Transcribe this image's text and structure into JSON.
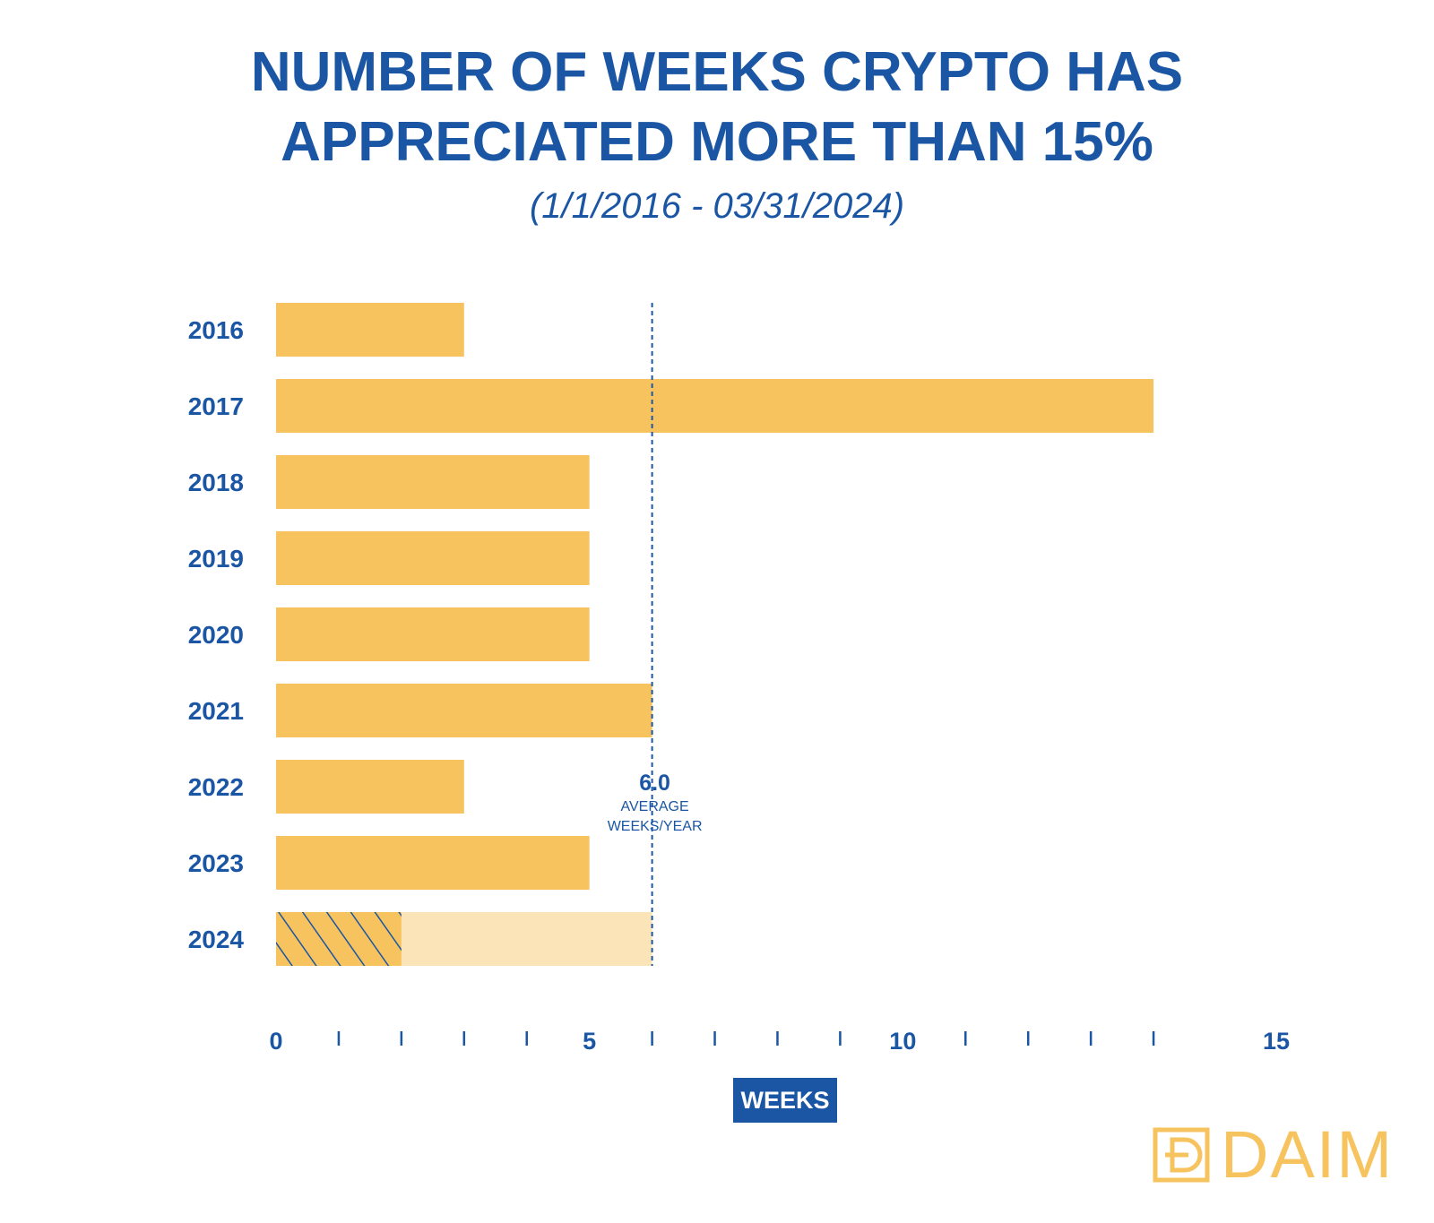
{
  "chart_data": {
    "type": "bar",
    "orientation": "horizontal",
    "title_lines": [
      "NUMBER OF WEEKS CRYPTO HAS",
      "APPRECIATED MORE THAN 15%"
    ],
    "subtitle": "(1/1/2016 - 03/31/2024)",
    "categories": [
      "2016",
      "2017",
      "2018",
      "2019",
      "2020",
      "2021",
      "2022",
      "2023",
      "2024"
    ],
    "values": [
      3,
      14,
      5,
      5,
      5,
      6,
      3,
      5,
      2
    ],
    "projection": {
      "category": "2024",
      "value": 6
    },
    "xlabel": "WEEKS",
    "xlim": [
      0,
      15
    ],
    "xticks_labeled": [
      0,
      5,
      10,
      15
    ],
    "xtick_step": 1,
    "average": {
      "value": 6.0,
      "label_value": "6.0",
      "label_lines": [
        "AVERAGE",
        "WEEKS/YEAR"
      ]
    },
    "colors": {
      "bar": "#f7c35f",
      "projection": "#fbe4b7",
      "text": "#1a56a4",
      "hatch": "#1a56a4"
    }
  },
  "logo": {
    "text": "DAIM"
  }
}
